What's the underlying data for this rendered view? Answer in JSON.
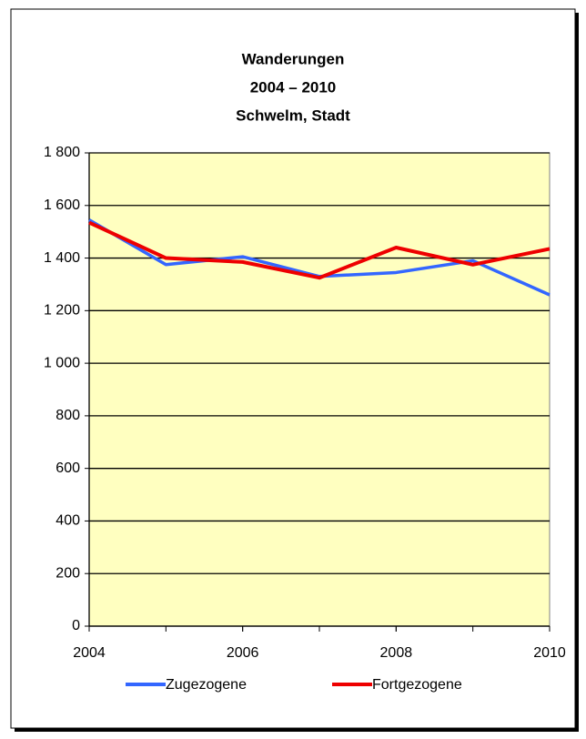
{
  "chart_data": {
    "type": "line",
    "title": [
      "Wanderungen",
      "2004 – 2010",
      "Schwelm, Stadt"
    ],
    "x": [
      2004,
      2005,
      2006,
      2007,
      2008,
      2009,
      2010
    ],
    "series": [
      {
        "name": "Zugezogene",
        "color": "#3366ff",
        "values": [
          1545,
          1375,
          1405,
          1330,
          1345,
          1390,
          1260
        ]
      },
      {
        "name": "Fortgezogene",
        "color": "#ee0000",
        "values": [
          1535,
          1400,
          1385,
          1325,
          1440,
          1375,
          1435
        ]
      }
    ],
    "xlim": [
      2004,
      2010
    ],
    "xticks": [
      2004,
      2006,
      2008,
      2010
    ],
    "ylim": [
      0,
      1800
    ],
    "yticks": [
      0,
      200,
      400,
      600,
      800,
      {
        "value": 1000,
        "label": "1 000"
      },
      {
        "value": 1200,
        "label": "1 200"
      },
      {
        "value": 1400,
        "label": "1 400"
      },
      {
        "value": 1600,
        "label": "1 600"
      },
      {
        "value": 1800,
        "label": "1 800"
      }
    ],
    "grid": true,
    "legend": "bottom",
    "plot_background": "#ffffc0"
  }
}
